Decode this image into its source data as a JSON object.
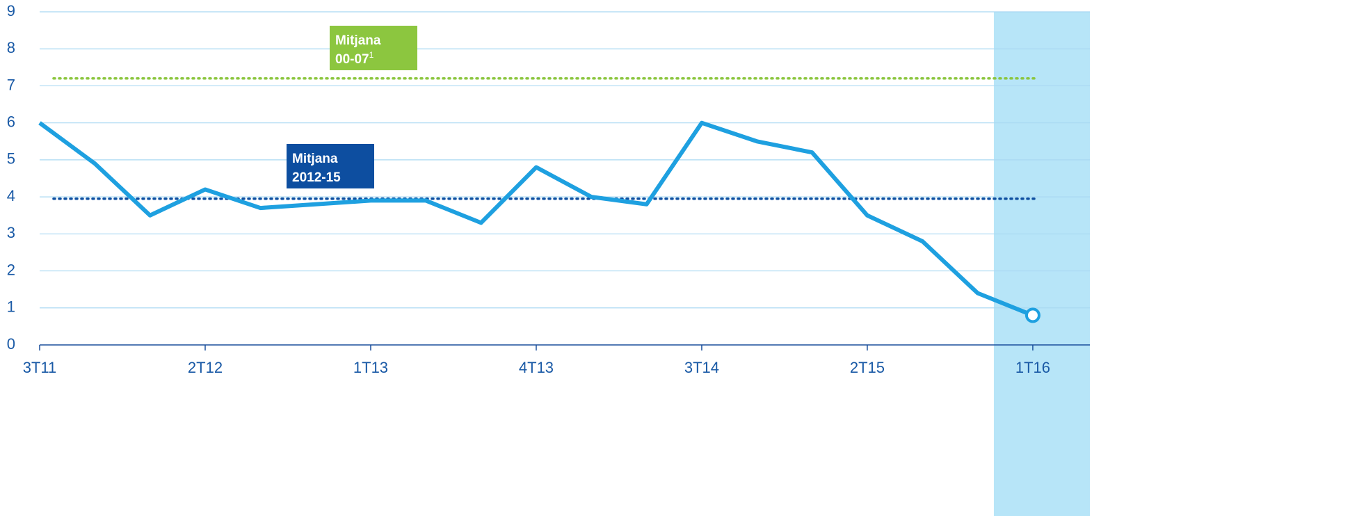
{
  "chart_data": {
    "type": "line",
    "categories": [
      "3T11",
      null,
      null,
      "2T12",
      null,
      null,
      "1T13",
      null,
      null,
      "4T13",
      null,
      null,
      "3T14",
      null,
      null,
      "2T15",
      null,
      null,
      "1T16"
    ],
    "values": [
      6.0,
      4.9,
      3.5,
      4.2,
      3.7,
      3.8,
      3.9,
      3.9,
      3.3,
      4.8,
      4.0,
      3.8,
      6.0,
      5.5,
      5.2,
      3.5,
      2.8,
      1.4,
      0.8
    ],
    "color": "#1ea0e0",
    "ylim": [
      0,
      9
    ],
    "yticks": [
      0,
      1,
      2,
      3,
      4,
      5,
      6,
      7,
      8,
      9
    ],
    "grid": true,
    "reference_lines": [
      {
        "value": 7.2,
        "label_lines": [
          "Mitjana",
          "00-07"
        ],
        "superscript": "1",
        "color": "#8cc63f"
      },
      {
        "value": 3.95,
        "label_lines": [
          "Mitjana",
          "2012-15"
        ],
        "color": "#0d4ea0"
      }
    ],
    "highlight_category_index": 18,
    "highlight_color": "#b7e5f8"
  }
}
